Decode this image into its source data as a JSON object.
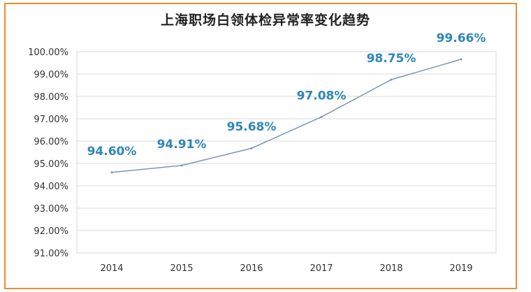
{
  "colors": {
    "frame": "#ef8b2c",
    "line": "#7f97b2",
    "data_label": "#2e86b8",
    "grid": "#d9d9d9",
    "tick_text": "#333333",
    "title": "#222222"
  },
  "chart_data": {
    "type": "line",
    "title": "上海职场白领体检异常率变化趋势",
    "xlabel": "",
    "ylabel": "",
    "categories": [
      "2014",
      "2015",
      "2016",
      "2017",
      "2018",
      "2019"
    ],
    "series": [
      {
        "values": [
          94.6,
          94.91,
          95.68,
          97.08,
          98.75,
          99.66
        ]
      }
    ],
    "data_labels": [
      "94.60%",
      "94.91%",
      "95.68%",
      "97.08%",
      "98.75%",
      "99.66%"
    ],
    "y_ticks": [
      91,
      92,
      93,
      94,
      95,
      96,
      97,
      98,
      99,
      100
    ],
    "y_tick_labels": [
      "91.00%",
      "92.00%",
      "93.00%",
      "94.00%",
      "95.00%",
      "96.00%",
      "97.00%",
      "98.00%",
      "99.00%",
      "100.00%"
    ],
    "ylim": [
      91,
      100
    ],
    "grid": true,
    "legend": "none"
  }
}
